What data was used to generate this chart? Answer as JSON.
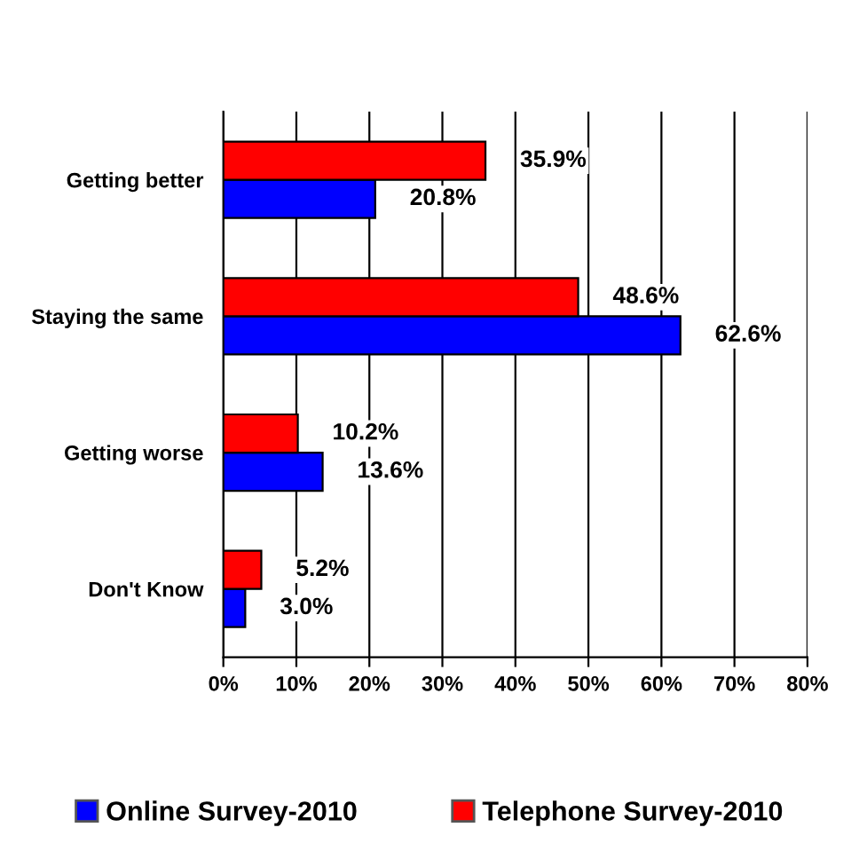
{
  "chart_data": {
    "type": "bar",
    "orientation": "horizontal",
    "categories": [
      "Getting better",
      "Staying the same",
      "Getting worse",
      "Don't Know"
    ],
    "series": [
      {
        "name": "Online Survey-2010",
        "color": "#0000ff",
        "values": [
          20.8,
          62.6,
          13.6,
          3.0
        ],
        "value_labels": [
          "20.8%",
          "62.6%",
          "13.6%",
          "3.0%"
        ]
      },
      {
        "name": "Telephone Survey-2010",
        "color": "#ff0000",
        "values": [
          35.9,
          48.6,
          10.2,
          5.2
        ],
        "value_labels": [
          "35.9%",
          "48.6%",
          "10.2%",
          "5.2%"
        ]
      }
    ],
    "xlim": [
      0,
      80
    ],
    "xticks": [
      {
        "value": 0,
        "label": "0%"
      },
      {
        "value": 10,
        "label": "10%"
      },
      {
        "value": 20,
        "label": "20%"
      },
      {
        "value": 30,
        "label": "30%"
      },
      {
        "value": 40,
        "label": "40%"
      },
      {
        "value": 50,
        "label": "50%"
      },
      {
        "value": 60,
        "label": "60%"
      },
      {
        "value": 70,
        "label": "70%"
      },
      {
        "value": 80,
        "label": "80%"
      }
    ],
    "grid": "x",
    "legend": "bottom"
  }
}
